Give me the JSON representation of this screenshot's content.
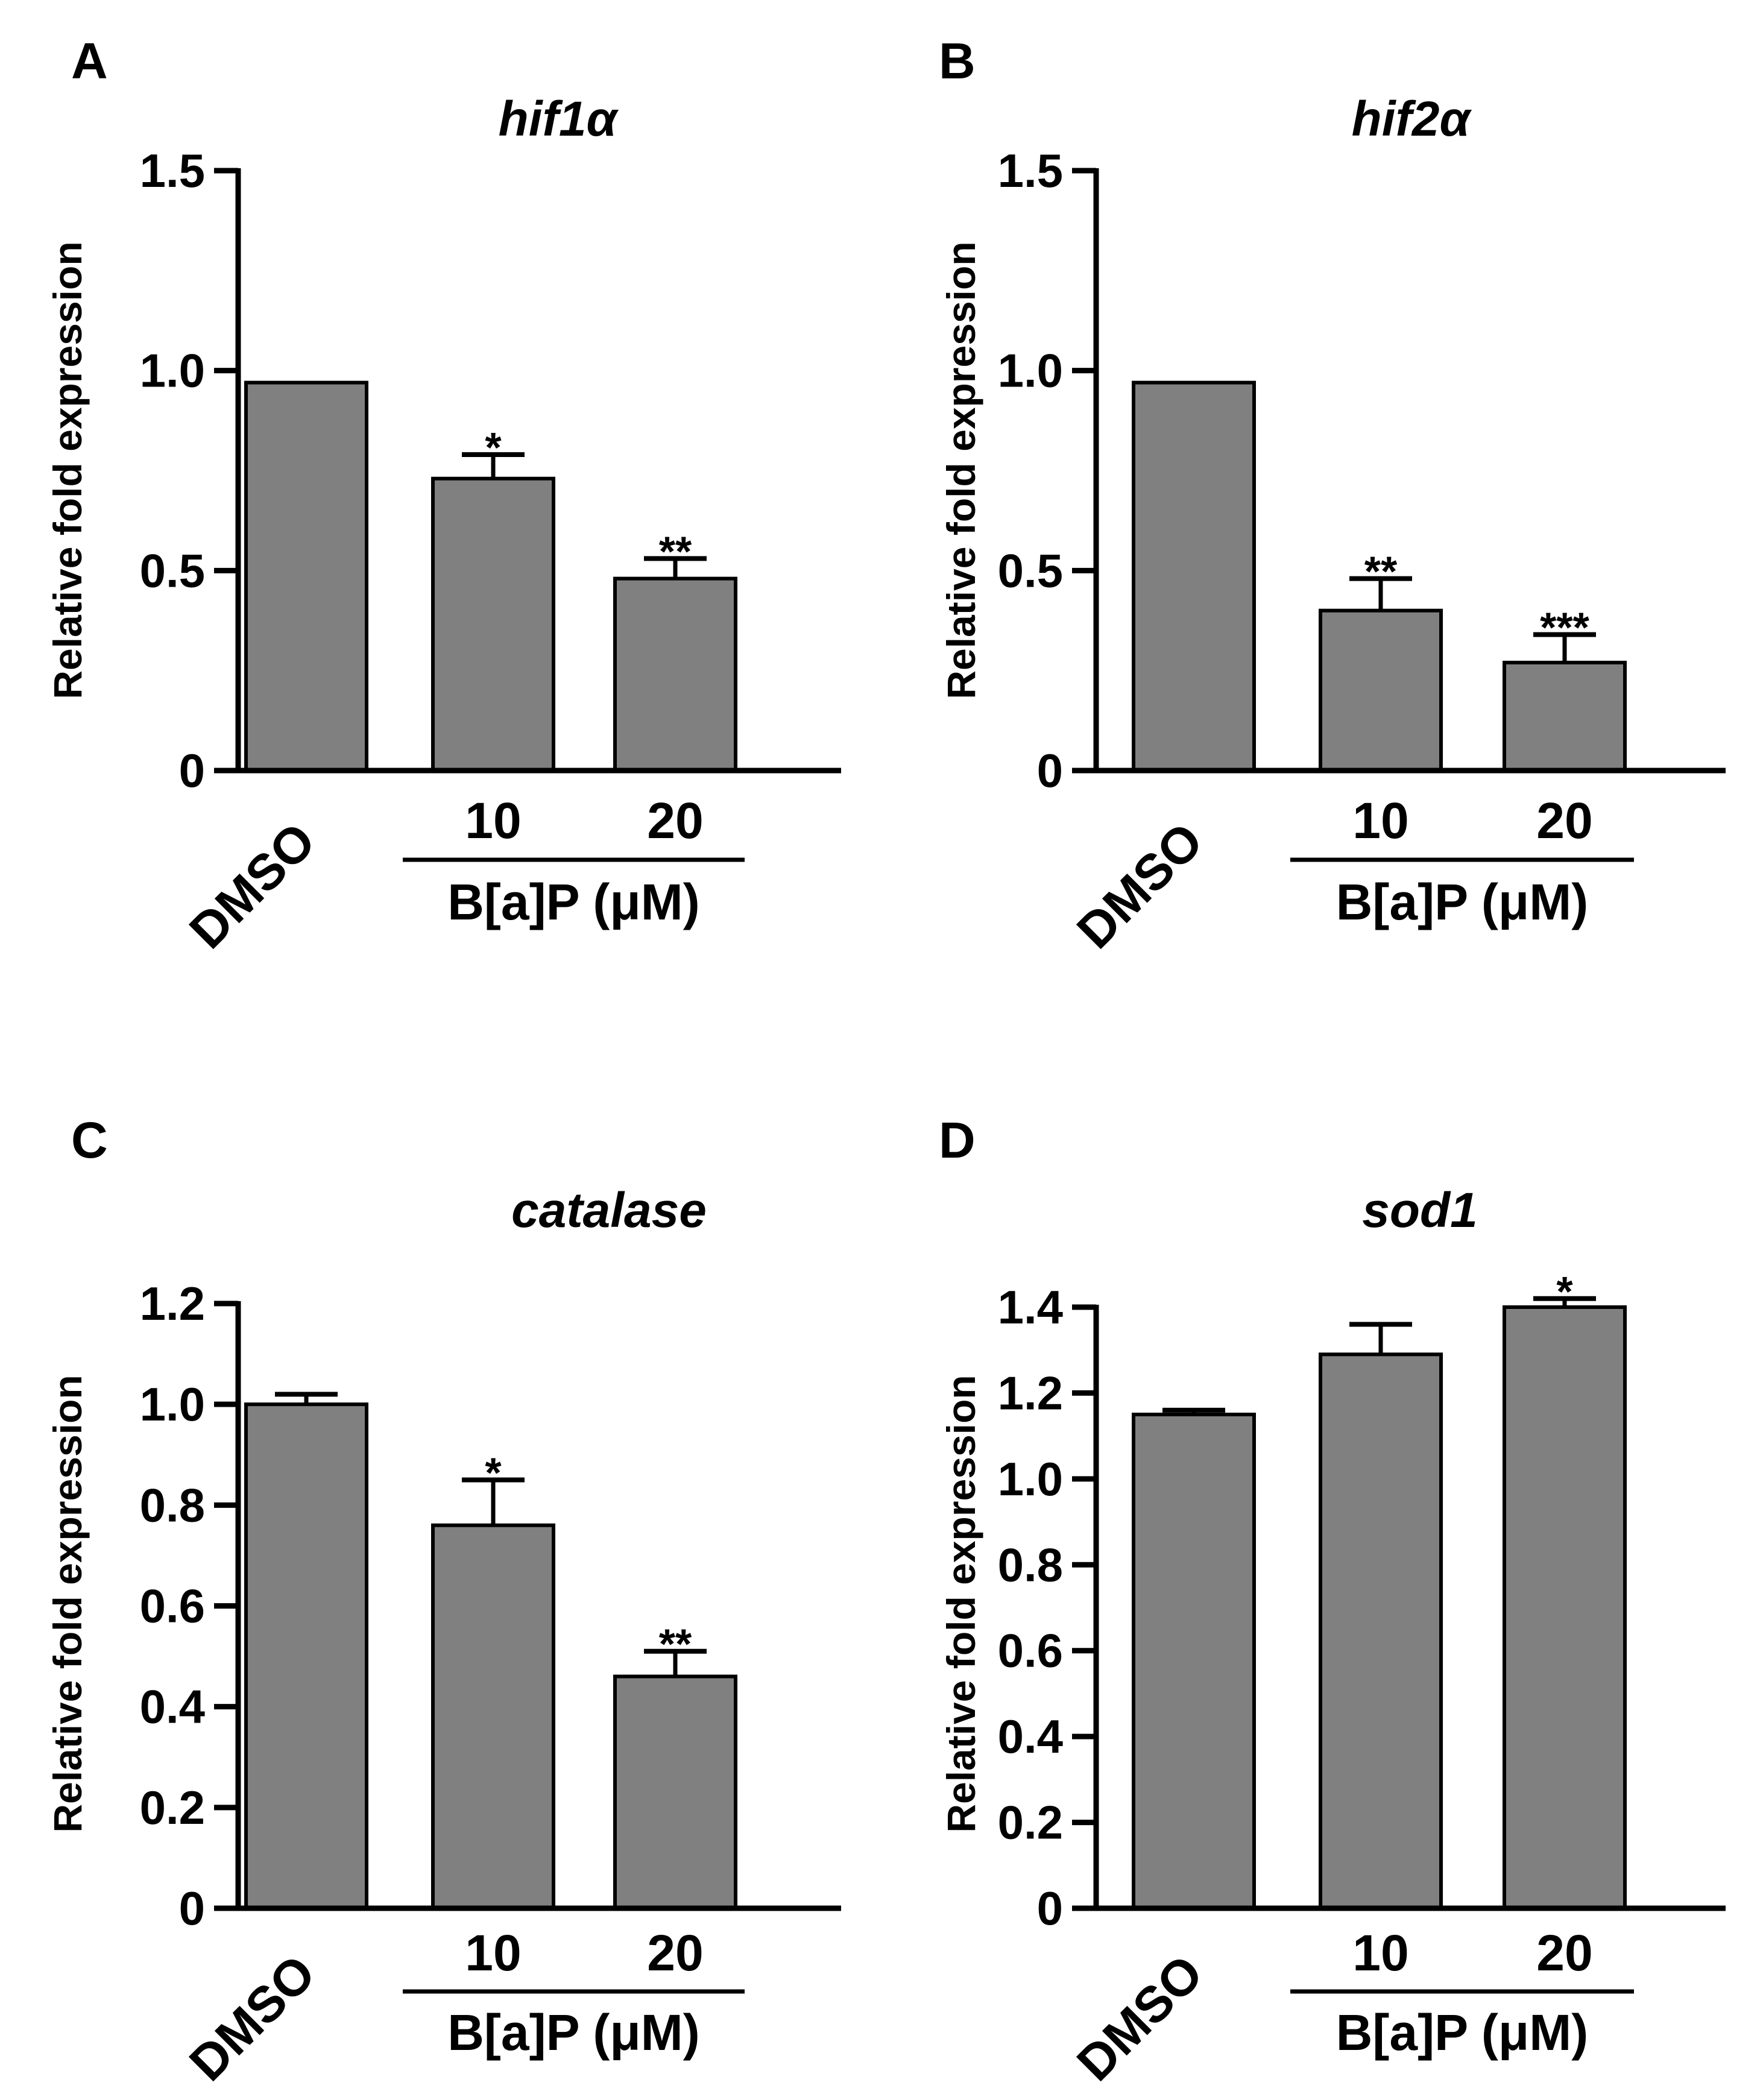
{
  "figure": {
    "colors": {
      "bar_fill": "#808080",
      "stroke": "#000000",
      "background": "#ffffff"
    }
  },
  "chart_data": [
    {
      "panel": "A",
      "type": "bar",
      "title": "hif1α",
      "xlabel": "",
      "ylabel": "Relative fold expression",
      "categories": [
        "DMSO",
        "10",
        "20"
      ],
      "group_label": "B[a]P (μM)",
      "group_categories": [
        "10",
        "20"
      ],
      "values": [
        0.97,
        0.73,
        0.48
      ],
      "errors": [
        0,
        0.06,
        0.05
      ],
      "significance": [
        "",
        "*",
        "**"
      ],
      "ylim": [
        0,
        1.5
      ],
      "yticks": [
        0,
        0.5,
        1.0,
        1.5
      ],
      "ytick_labels": [
        "0",
        "0.5",
        "1.0",
        "1.5"
      ],
      "grid": false
    },
    {
      "panel": "B",
      "type": "bar",
      "title": "hif2α",
      "xlabel": "",
      "ylabel": "Relative fold expression",
      "categories": [
        "DMSO",
        "10",
        "20"
      ],
      "group_label": "B[a]P (μM)",
      "group_categories": [
        "10",
        "20"
      ],
      "values": [
        0.97,
        0.4,
        0.27
      ],
      "errors": [
        0,
        0.08,
        0.07
      ],
      "significance": [
        "",
        "**",
        "***"
      ],
      "ylim": [
        0,
        1.5
      ],
      "yticks": [
        0,
        0.5,
        1.0,
        1.5
      ],
      "ytick_labels": [
        "0",
        "0.5",
        "1.0",
        "1.5"
      ],
      "grid": false
    },
    {
      "panel": "C",
      "type": "bar",
      "title": "catalase",
      "xlabel": "",
      "ylabel": "Relative fold expression",
      "categories": [
        "DMSO",
        "10",
        "20"
      ],
      "group_label": "B[a]P (μM)",
      "group_categories": [
        "10",
        "20"
      ],
      "values": [
        1.0,
        0.76,
        0.46
      ],
      "errors": [
        0.02,
        0.09,
        0.05
      ],
      "significance": [
        "",
        "*",
        "**"
      ],
      "ylim": [
        0,
        1.2
      ],
      "yticks": [
        0,
        0.2,
        0.4,
        0.6,
        0.8,
        1.0,
        1.2
      ],
      "ytick_labels": [
        "0",
        "0.2",
        "0.4",
        "0.6",
        "0.8",
        "1.0",
        "1.2"
      ],
      "grid": false
    },
    {
      "panel": "D",
      "type": "bar",
      "title": "sod1",
      "xlabel": "",
      "ylabel": "Relative fold expression",
      "categories": [
        "DMSO",
        "10",
        "20"
      ],
      "group_label": "B[a]P (μM)",
      "group_categories": [
        "10",
        "20"
      ],
      "values": [
        1.15,
        1.29,
        1.4
      ],
      "errors": [
        0.01,
        0.07,
        0.02
      ],
      "significance": [
        "",
        "",
        "*"
      ],
      "ylim": [
        0,
        1.4
      ],
      "yticks": [
        0,
        0.2,
        0.4,
        0.6,
        0.8,
        1.0,
        1.2,
        1.4
      ],
      "ytick_labels": [
        "0",
        "0.2",
        "0.4",
        "0.6",
        "0.8",
        "1.0",
        "1.2",
        "1.4"
      ],
      "grid": false
    }
  ]
}
